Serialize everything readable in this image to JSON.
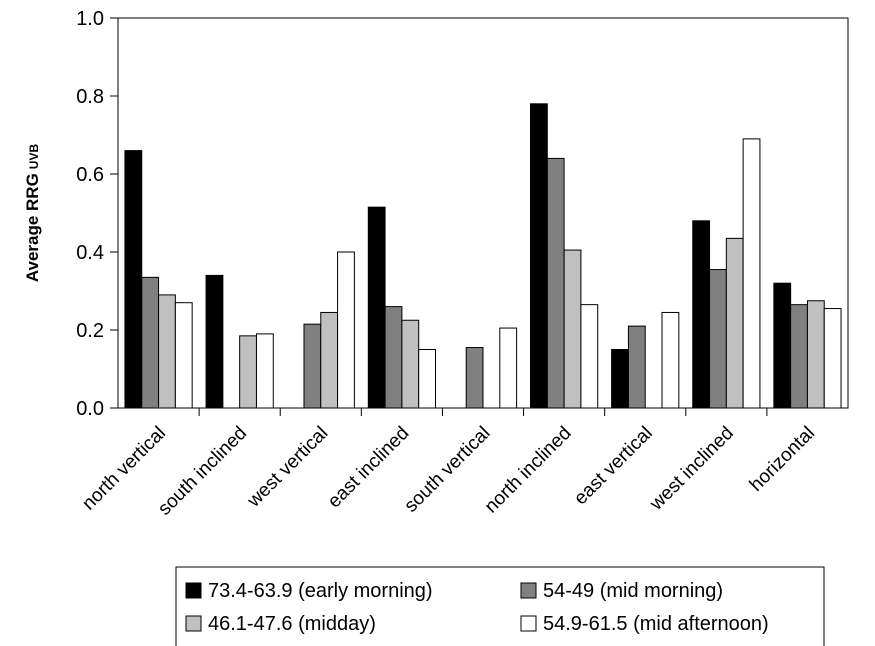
{
  "chart_data": {
    "type": "bar",
    "ylabel": "Average RRG",
    "ylabel_subscript": "UVB",
    "ylim": [
      0,
      1.0
    ],
    "yticks": [
      "0.0",
      "0.2",
      "0.4",
      "0.6",
      "0.8",
      "1.0"
    ],
    "categories": [
      "north vertical",
      "south inclined",
      "west vertical",
      "east inclined",
      "south vertical",
      "north inclined",
      "east vertical",
      "west inclined",
      "horizontal"
    ],
    "legend_position": "bottom",
    "series": [
      {
        "name": "73.4-63.9 (early morning)",
        "color": "#000000",
        "values": [
          0.66,
          0.34,
          null,
          0.515,
          null,
          0.78,
          0.15,
          0.48,
          0.32
        ]
      },
      {
        "name": "54-49 (mid morning)",
        "color": "#808080",
        "values": [
          0.335,
          null,
          0.215,
          0.26,
          0.155,
          0.64,
          0.21,
          0.355,
          0.265
        ]
      },
      {
        "name": "46.1-47.6 (midday)",
        "color": "#c0c0c0",
        "values": [
          0.29,
          0.185,
          0.245,
          0.225,
          null,
          0.405,
          null,
          0.435,
          0.275
        ]
      },
      {
        "name": "54.9-61.5 (mid afternoon)",
        "color": "#ffffff",
        "values": [
          0.27,
          0.19,
          0.4,
          0.15,
          0.205,
          0.265,
          0.245,
          0.69,
          0.255
        ]
      }
    ]
  }
}
